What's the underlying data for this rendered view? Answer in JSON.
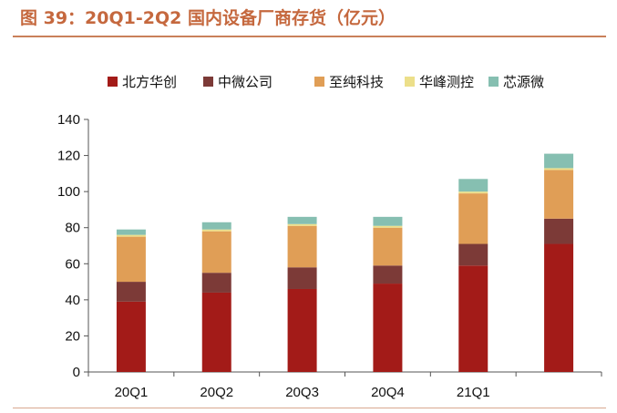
{
  "title": "图 39：20Q1-2Q2 国内设备厂商存货（亿元）",
  "colors": {
    "title": "#c5683e",
    "series": [
      "#a31b18",
      "#7c3a37",
      "#e09e56",
      "#ecdf8a",
      "#86bfb1"
    ]
  },
  "chart_data": {
    "type": "bar",
    "stacked": true,
    "categories": [
      "20Q1",
      "20Q2",
      "20Q3",
      "20Q4",
      "21Q1",
      ""
    ],
    "series": [
      {
        "name": "北方华创",
        "values": [
          39,
          44,
          46,
          49,
          59,
          71
        ]
      },
      {
        "name": "中微公司",
        "values": [
          11,
          11,
          12,
          10,
          12,
          14
        ]
      },
      {
        "name": "至纯科技",
        "values": [
          25,
          23,
          23,
          21,
          28,
          27
        ]
      },
      {
        "name": "华峰测控",
        "values": [
          1,
          1,
          1,
          1,
          1,
          1
        ]
      },
      {
        "name": "芯源微",
        "values": [
          3,
          4,
          4,
          5,
          7,
          8
        ]
      }
    ],
    "ylim": [
      0,
      140
    ],
    "yticks": [
      "0",
      "20",
      "40",
      "60",
      "80",
      "100",
      "120",
      "140"
    ],
    "legend_position": "top",
    "grid": false
  }
}
